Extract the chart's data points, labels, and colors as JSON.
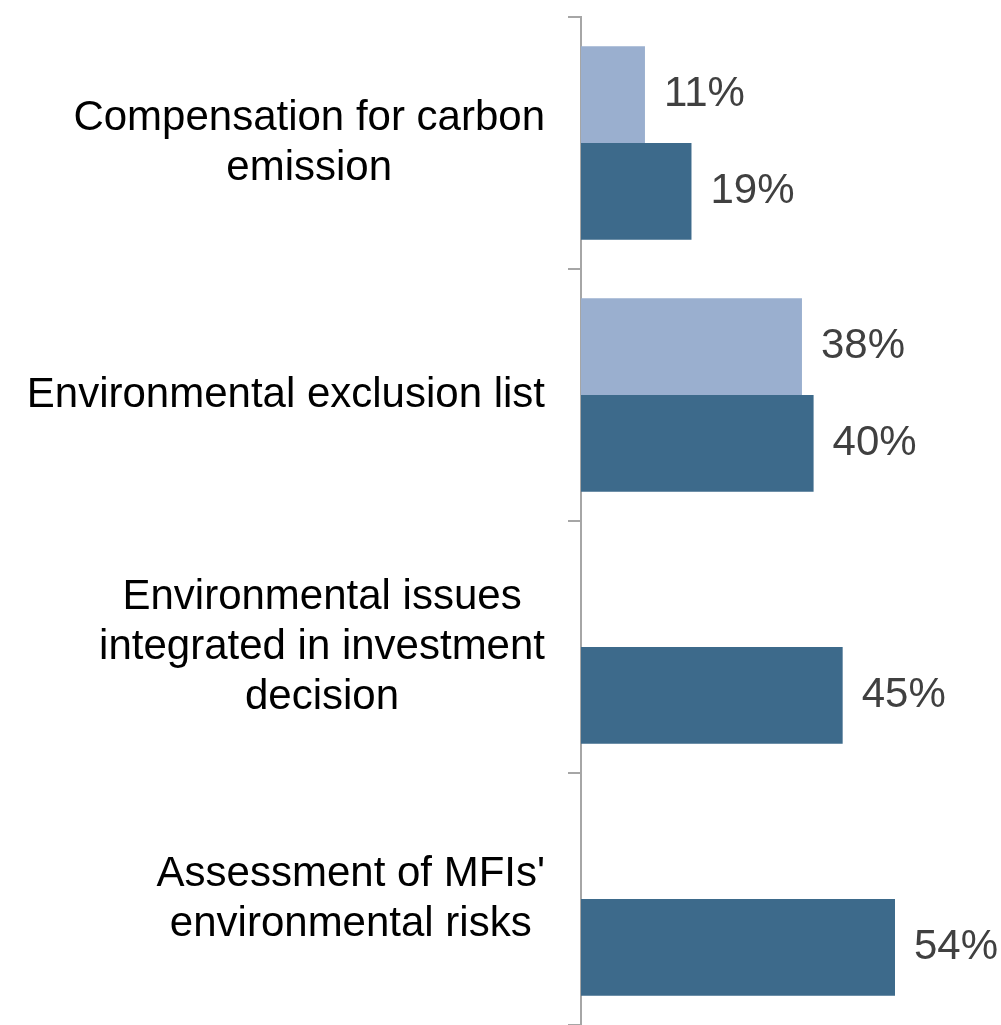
{
  "chart_data": {
    "type": "bar",
    "orientation": "horizontal",
    "categories": [
      "Compensation for carbon emission",
      "Environmental exclusion list",
      "Environmental issues integrated in investment decision",
      "Assessment of MFIs' environmental risks"
    ],
    "series": [
      {
        "color": "#9aafcf",
        "values": [
          11,
          38,
          null,
          null
        ],
        "value_labels": [
          "11%",
          "38%",
          null,
          null
        ]
      },
      {
        "color": "#3d6a8b",
        "values": [
          19,
          40,
          45,
          54
        ],
        "value_labels": [
          "19%",
          "40%",
          "45%",
          "54%"
        ]
      }
    ],
    "tick_labels": "y"
  }
}
